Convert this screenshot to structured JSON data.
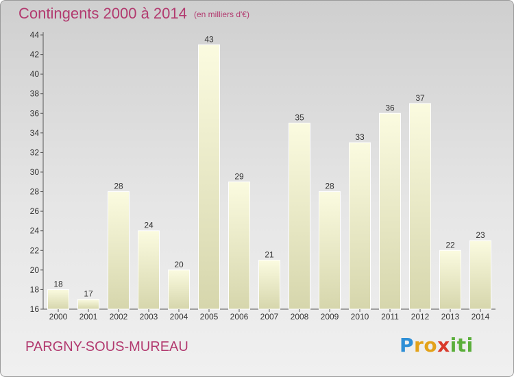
{
  "title": "Contingents 2000 à 2014",
  "subtitle": "(en milliers d'€)",
  "commune": "PARGNY-SOUS-MUREAU",
  "logo": {
    "letters": [
      "P",
      "r",
      "o",
      "x",
      "i",
      "t",
      "i"
    ],
    "colors": [
      "#2e8fd6",
      "#e3a21a",
      "#e3a21a",
      "#d93a2b",
      "#5aae3a",
      "#5aae3a",
      "#5aae3a"
    ]
  },
  "colors": {
    "accent": "#b23a6f",
    "bar_top": "#fbfbe0",
    "bar_bottom": "#d6d6ac",
    "text": "#333333"
  },
  "chart_data": {
    "type": "bar",
    "categories": [
      "2000",
      "2001",
      "2002",
      "2003",
      "2004",
      "2005",
      "2006",
      "2007",
      "2008",
      "2009",
      "2010",
      "2011",
      "2012",
      "2013",
      "2014"
    ],
    "values": [
      18,
      17,
      28,
      24,
      20,
      43,
      29,
      21,
      35,
      28,
      33,
      36,
      37,
      22,
      23
    ],
    "yticks": [
      16,
      18,
      20,
      22,
      24,
      26,
      28,
      30,
      32,
      34,
      36,
      38,
      40,
      42,
      44
    ],
    "ylim": [
      16,
      44
    ],
    "xlabel": "",
    "ylabel": "",
    "grid": false,
    "legend": "none"
  }
}
